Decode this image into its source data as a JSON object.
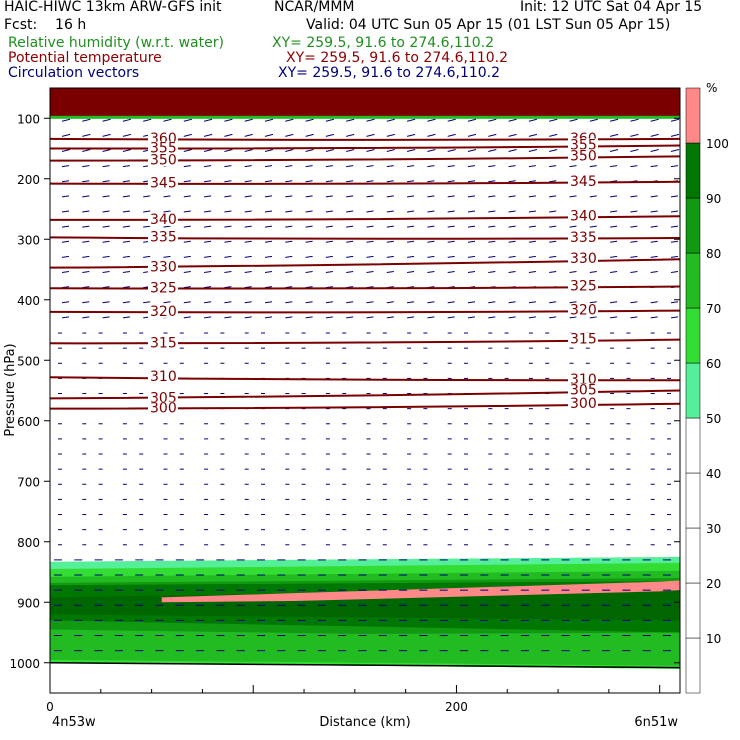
{
  "header": {
    "title": "HAIC-HIWC 13km ARW-GFS init",
    "center": "NCAR/MMM",
    "init": "Init: 12 UTC Sat 04 Apr 15",
    "fcst": "Fcst:    16 h",
    "valid": "Valid: 04 UTC Sun 05 Apr 15 (01 LST Sun 05 Apr 15)",
    "rh_label": "Relative humidity (w.r.t. water)",
    "rh_xy": "XY= 259.5, 91.6 to 274.6,110.2",
    "theta_label": "Potential temperature",
    "theta_xy": "XY= 259.5, 91.6 to 274.6,110.2",
    "vec_label": "Circulation vectors",
    "vec_xy": "XY= 259.5, 91.6 to 274.6,110.2"
  },
  "chart_data": {
    "type": "contour",
    "xlabel": "Distance (km)",
    "ylabel": "Pressure (hPa)",
    "xlim": [
      0,
      310
    ],
    "ylim": [
      1050,
      50
    ],
    "x_ticks": [
      0,
      200
    ],
    "y_ticks": [
      100,
      200,
      300,
      400,
      500,
      600,
      700,
      800,
      900,
      1000
    ],
    "x_end_labels": [
      "4n53w",
      "6n51w"
    ],
    "colorbar": {
      "unit": "%",
      "levels": [
        10,
        20,
        30,
        40,
        50,
        60,
        70,
        80,
        90,
        100
      ],
      "colors": [
        "#ffffff",
        "#ffffff",
        "#ffffff",
        "#ffffff",
        "#ffffff",
        "#55ee99",
        "#33dd33",
        "#22bb22",
        "#119911",
        "#007700",
        "#ff8888"
      ]
    },
    "theta_contours": [
      {
        "value": 360,
        "p_left": 134,
        "p_right": 134
      },
      {
        "value": 355,
        "p_left": 150,
        "p_right": 145
      },
      {
        "value": 350,
        "p_left": 170,
        "p_right": 163
      },
      {
        "value": 345,
        "p_left": 208,
        "p_right": 205
      },
      {
        "value": 340,
        "p_left": 268,
        "p_right": 262
      },
      {
        "value": 335,
        "p_left": 297,
        "p_right": 298
      },
      {
        "value": 330,
        "p_left": 347,
        "p_right": 333
      },
      {
        "value": 325,
        "p_left": 381,
        "p_right": 378
      },
      {
        "value": 320,
        "p_left": 420,
        "p_right": 418
      },
      {
        "value": 315,
        "p_left": 472,
        "p_right": 466
      },
      {
        "value": 310,
        "p_left": 528,
        "p_right": 533
      },
      {
        "value": 305,
        "p_left": 563,
        "p_right": 550
      },
      {
        "value": 300,
        "p_left": 580,
        "p_right": 572
      }
    ],
    "rh_regions": [
      {
        "level": "high",
        "description": "top",
        "p_top": 50,
        "p_bottom": 95
      },
      {
        "level": "moist layer",
        "p_top": 830,
        "p_bottom": 1000
      }
    ]
  }
}
